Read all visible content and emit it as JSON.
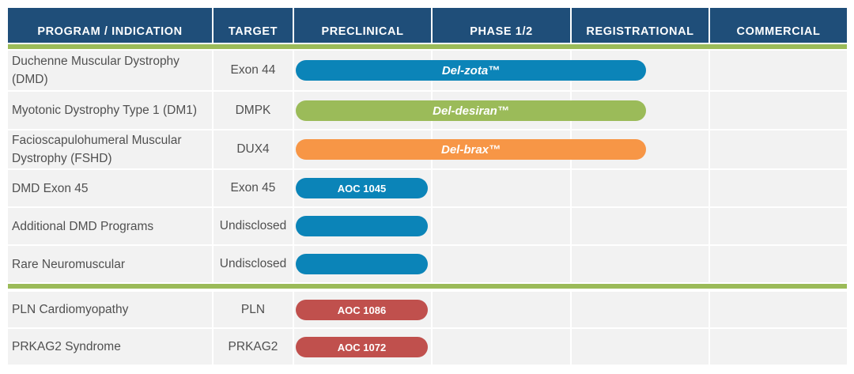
{
  "columns": [
    "PROGRAM / INDICATION",
    "TARGET",
    "PRECLINICAL",
    "PHASE 1/2",
    "REGISTRATIONAL",
    "COMMERCIAL"
  ],
  "colors": {
    "header": "#1f4e79",
    "band": "#9bbb59",
    "blue": "#0b84b8",
    "green": "#9bbb59",
    "orange": "#f79646",
    "red": "#c0504d",
    "cell": "#f2f2f2"
  },
  "chart_data": {
    "type": "table",
    "stages": [
      "PRECLINICAL",
      "PHASE 1/2",
      "REGISTRATIONAL",
      "COMMERCIAL"
    ],
    "rows": [
      {
        "program": "Duchenne Muscular Dystrophy (DMD)",
        "target": "Exon 44",
        "bar_label": "Del-zota™",
        "stage_reached": "REGISTRATIONAL",
        "color": "blue",
        "italic": true,
        "group": 1
      },
      {
        "program": "Myotonic Dystrophy Type 1 (DM1)",
        "target": "DMPK",
        "bar_label": "Del-desiran™",
        "stage_reached": "REGISTRATIONAL",
        "color": "green",
        "italic": true,
        "group": 1
      },
      {
        "program": "Facioscapulohumeral Muscular Dystrophy (FSHD)",
        "target": "DUX4",
        "bar_label": "Del-brax™",
        "stage_reached": "REGISTRATIONAL",
        "color": "orange",
        "italic": true,
        "group": 1
      },
      {
        "program": "DMD Exon 45",
        "target": "Exon 45",
        "bar_label": "AOC 1045",
        "stage_reached": "PRECLINICAL",
        "color": "blue",
        "italic": false,
        "group": 1
      },
      {
        "program": "Additional DMD Programs",
        "target": "Undisclosed",
        "bar_label": "",
        "stage_reached": "PRECLINICAL",
        "color": "blue",
        "italic": false,
        "group": 1
      },
      {
        "program": "Rare Neuromuscular",
        "target": "Undisclosed",
        "bar_label": "",
        "stage_reached": "PRECLINICAL",
        "color": "blue",
        "italic": false,
        "group": 1
      },
      {
        "program": "PLN Cardiomyopathy",
        "target": "PLN",
        "bar_label": "AOC 1086",
        "stage_reached": "PRECLINICAL",
        "color": "red",
        "italic": false,
        "group": 2
      },
      {
        "program": "PRKAG2 Syndrome",
        "target": "PRKAG2",
        "bar_label": "AOC 1072",
        "stage_reached": "PRECLINICAL",
        "color": "red",
        "italic": false,
        "group": 2
      }
    ]
  }
}
